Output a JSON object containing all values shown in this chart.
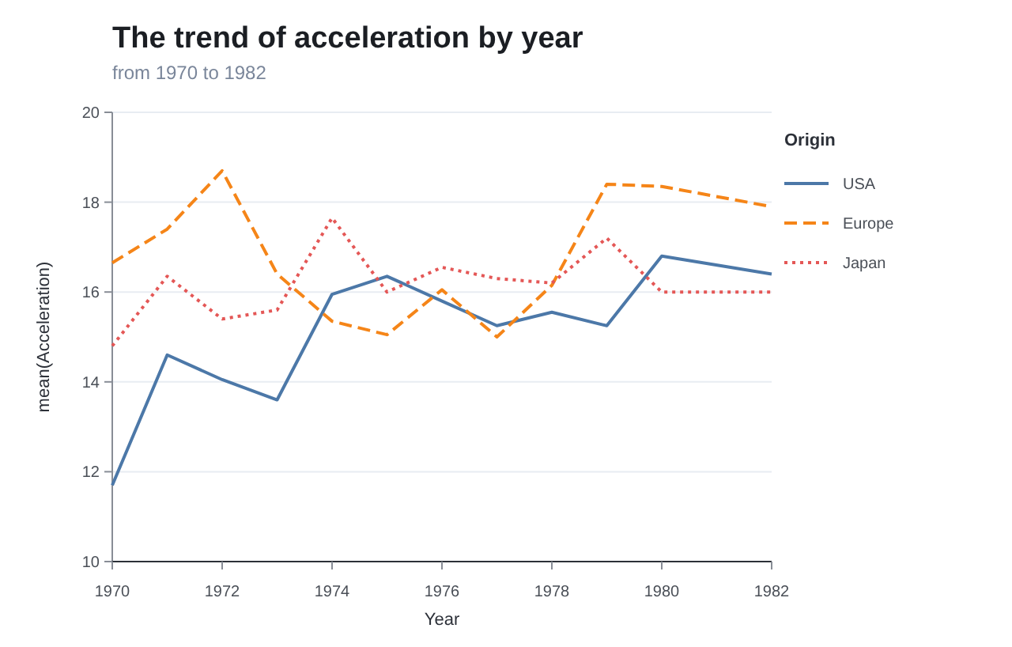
{
  "chart_data": {
    "type": "line",
    "title": "The trend of acceleration by year",
    "subtitle": "from 1970 to 1982",
    "xlabel": "Year",
    "ylabel": "mean(Acceleration)",
    "legend_title": "Origin",
    "x": [
      1970,
      1971,
      1972,
      1973,
      1974,
      1975,
      1976,
      1977,
      1978,
      1979,
      1980,
      1982
    ],
    "series": [
      {
        "name": "USA",
        "color": "#4c78a8",
        "line_style": "solid",
        "values": [
          11.7,
          14.6,
          14.05,
          13.6,
          15.95,
          16.35,
          15.8,
          15.25,
          15.55,
          15.25,
          16.8,
          16.4
        ]
      },
      {
        "name": "Europe",
        "color": "#f58518",
        "line_style": "dashed",
        "values": [
          16.65,
          17.4,
          18.7,
          16.4,
          15.35,
          15.05,
          16.05,
          15.0,
          16.15,
          18.4,
          18.35,
          17.9
        ]
      },
      {
        "name": "Japan",
        "color": "#e45756",
        "line_style": "dotted",
        "values": [
          14.8,
          16.35,
          15.4,
          15.6,
          17.65,
          16.0,
          16.55,
          16.3,
          16.2,
          17.2,
          16.0,
          16.0
        ]
      }
    ],
    "xlim": [
      1970,
      1982
    ],
    "xticks": [
      1970,
      1972,
      1974,
      1976,
      1978,
      1980,
      1982
    ],
    "ylim": [
      10,
      20
    ],
    "yticks": [
      10,
      12,
      14,
      16,
      18,
      20
    ],
    "grid": "y",
    "legend": "right",
    "marker": "none"
  }
}
